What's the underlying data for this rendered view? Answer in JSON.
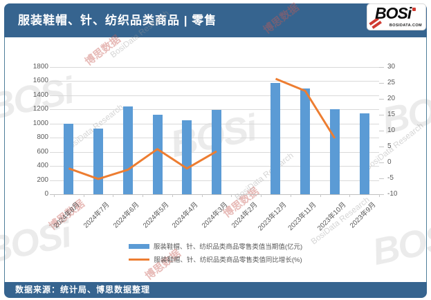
{
  "chart_data": {
    "type": "bar",
    "combo": "bar+line",
    "title": "服装鞋帽、针、纺织品类商品 | 零售",
    "categories": [
      "2024年8月",
      "2024年7月",
      "2024年6月",
      "2024年5月",
      "2024年4月",
      "2024年3月",
      "2024年2月",
      "2023年12月",
      "2023年11月",
      "2023年10月",
      "2023年9月"
    ],
    "series": [
      {
        "name": "服装鞋帽、针、纺织品类商品零售类值当期值(亿元)",
        "type": "bar",
        "y_axis": "left",
        "color": "#5B9BD5",
        "values": [
          1000,
          930,
          1240,
          1130,
          1045,
          1190,
          null,
          1580,
          1500,
          1200,
          1140
        ]
      },
      {
        "name": "服装鞋帽、针、纺织品类商品零售类值同比增长(%)",
        "type": "line",
        "y_axis": "right",
        "color": "#ED7D31",
        "values": [
          -1.9,
          -5.2,
          -2.3,
          4.2,
          -1.9,
          3.5,
          null,
          26.3,
          22.5,
          7.6,
          null
        ]
      }
    ],
    "left_axis": {
      "min": 0,
      "max": 1800,
      "step": 200
    },
    "right_axis": {
      "min": -10,
      "max": 30,
      "step": 5
    },
    "grid": true,
    "legend_position": "bottom"
  },
  "logo": {
    "wordmark": "BOSi",
    "domain": "BOSIDATA.COM"
  },
  "footer": {
    "source_note": "数据来源：统计局、博思数据整理"
  },
  "watermark": {
    "cn": "博思数据",
    "en": "BosiData Research",
    "wordmark": "BOSi"
  },
  "colors": {
    "header_bg": "#36648F",
    "bar": "#5B9BD5",
    "line": "#ED7D31",
    "logo_red": "#D03A31"
  }
}
